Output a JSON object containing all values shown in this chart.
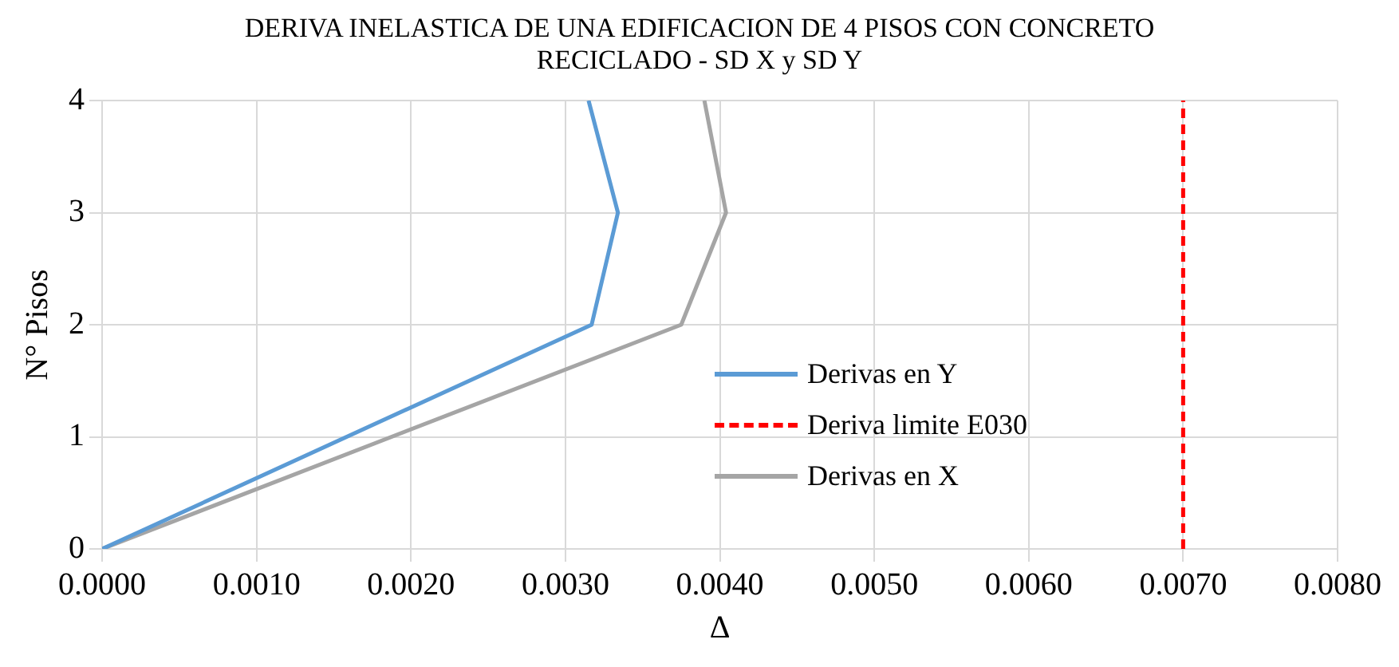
{
  "chart_data": {
    "type": "line",
    "title": "DERIVA INELASTICA DE UNA EDIFICACION DE 4 PISOS CON CONCRETO RECICLADO - SD X y SD Y",
    "xlabel": "Δ",
    "ylabel": "N° Pisos",
    "series": [
      {
        "name": "Derivas en Y",
        "color": "#5b9bd5",
        "x": [
          0,
          0.00317,
          0.00334,
          0.00315
        ],
        "values": [
          0,
          2,
          3,
          4
        ]
      },
      {
        "name": "Deriva limite E030",
        "color": "#ff0000",
        "line_style": "dashed",
        "x": [
          0.007,
          0.007
        ],
        "values": [
          0,
          4
        ]
      },
      {
        "name": "Derivas en X",
        "color": "#a5a5a5",
        "x": [
          0,
          0.00375,
          0.00404,
          0.0039
        ],
        "values": [
          0,
          2,
          3,
          4
        ]
      }
    ],
    "xlim": [
      0,
      0.008
    ],
    "xticks": [
      {
        "value": 0,
        "label": "0.0000"
      },
      {
        "value": 0.001,
        "label": "0.0010"
      },
      {
        "value": 0.002,
        "label": "0.0020"
      },
      {
        "value": 0.003,
        "label": "0.0030"
      },
      {
        "value": 0.004,
        "label": "0.0040"
      },
      {
        "value": 0.005,
        "label": "0.0050"
      },
      {
        "value": 0.006,
        "label": "0.0060"
      },
      {
        "value": 0.007,
        "label": "0.0070"
      },
      {
        "value": 0.008,
        "label": "0.0080"
      }
    ],
    "ylim": [
      0,
      4
    ],
    "yticks": [
      0,
      1,
      2,
      3,
      4
    ],
    "grid": true,
    "legend": "bottom right",
    "marker": "none",
    "line_style": "solid"
  }
}
